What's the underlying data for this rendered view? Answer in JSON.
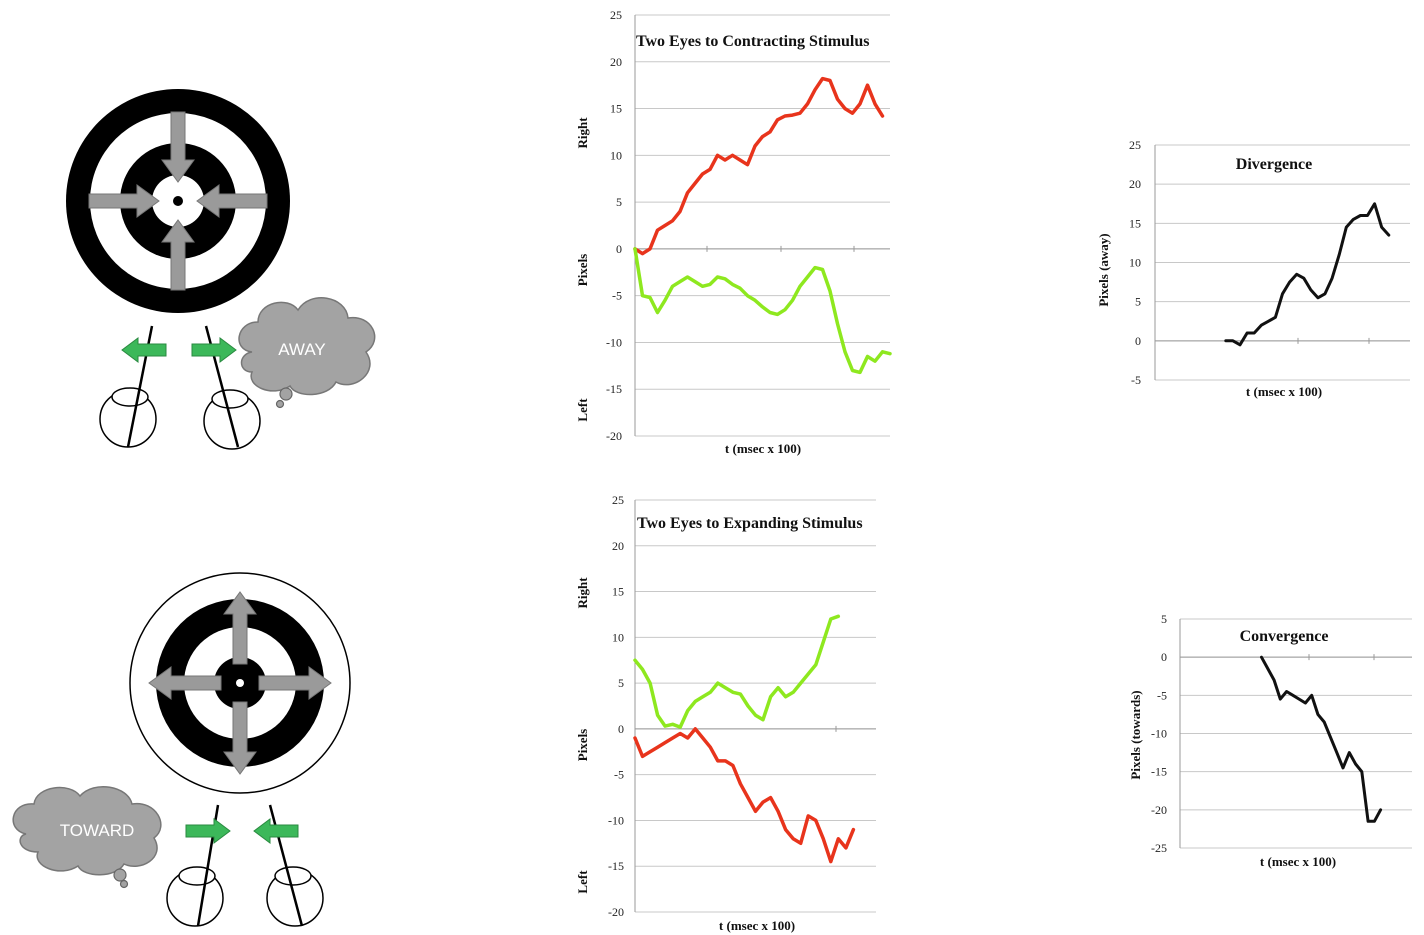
{
  "illustrations": {
    "away_label": "AWAY",
    "toward_label": "TOWARD"
  },
  "colors": {
    "right_eye": "#e8341c",
    "left_eye": "#8ee81f",
    "difference": "#111111",
    "arrow_green": "#3cb85a",
    "arrow_gray": "#9a9a9a",
    "cloud_gray": "#a3a3a3"
  },
  "chart_data": [
    {
      "id": "contracting",
      "type": "line",
      "title": "Two Eyes to Contracting Stimulus",
      "xlabel": "t (msec x 100)",
      "ylabel_top": "Right",
      "ylabel_mid": "Pixels",
      "ylabel_bottom": "Left",
      "ylim": [
        -20,
        25
      ],
      "yticks": [
        25,
        20,
        15,
        10,
        5,
        0,
        -5,
        -10,
        -15,
        -20
      ],
      "ytick_labels": [
        "25",
        "20",
        "15",
        "10",
        "5",
        "0",
        "-5",
        "-10",
        "-15",
        "-20"
      ],
      "grid": true,
      "xlim": [
        0,
        34
      ],
      "series": [
        {
          "color": "#e8341c",
          "values": [
            0,
            -0.5,
            0,
            2,
            2.5,
            3,
            4,
            6,
            7,
            8,
            8.5,
            10,
            9.5,
            10,
            9.5,
            9,
            11,
            12,
            12.5,
            13.8,
            14.2,
            14.3,
            14.5,
            15.5,
            17,
            18.2,
            18,
            16,
            15,
            14.5,
            15.5,
            17.5,
            15.5,
            14.2
          ]
        },
        {
          "color": "#8ee81f",
          "values": [
            0,
            -5,
            -5.2,
            -6.8,
            -5.5,
            -4,
            -3.5,
            -3,
            -3.5,
            -4,
            -3.8,
            -3,
            -3.2,
            -3.8,
            -4.2,
            -5,
            -5.5,
            -6.2,
            -6.8,
            -7,
            -6.5,
            -5.5,
            -4,
            -3,
            -2,
            -2.2,
            -4.5,
            -8,
            -11,
            -13,
            -13.2,
            -11.5,
            -12,
            -11,
            -11.2
          ]
        }
      ]
    },
    {
      "id": "expanding",
      "type": "line",
      "title": "Two Eyes to Expanding Stimulus",
      "xlabel": "t (msec x 100)",
      "ylabel_top": "Right",
      "ylabel_mid": "Pixels",
      "ylabel_bottom": "Left",
      "ylim": [
        -20,
        25
      ],
      "yticks": [
        25,
        20,
        15,
        10,
        5,
        0,
        -5,
        -10,
        -15,
        -20
      ],
      "ytick_labels": [
        "25",
        "20",
        "15",
        "10",
        "5",
        "0",
        "-5",
        "-10",
        "-15",
        "-20"
      ],
      "grid": true,
      "xlim": [
        0,
        32
      ],
      "series": [
        {
          "color": "#8ee81f",
          "values": [
            7.5,
            6.5,
            5,
            1.5,
            0.3,
            0.5,
            0.2,
            2,
            3,
            3.5,
            4,
            5,
            4.5,
            4,
            3.8,
            2.5,
            1.5,
            1,
            3.5,
            4.5,
            3.5,
            4,
            5,
            6,
            7,
            9.5,
            12,
            12.3
          ]
        },
        {
          "color": "#e8341c",
          "values": [
            -1,
            -3,
            -2.5,
            -2,
            -1.5,
            -1,
            -0.5,
            -1,
            0,
            -1,
            -2,
            -3.5,
            -3.5,
            -4,
            -6,
            -7.5,
            -9,
            -8,
            -7.5,
            -9,
            -11,
            -12,
            -12.5,
            -9.5,
            -10,
            -12,
            -14.5,
            -12,
            -13,
            -11
          ]
        }
      ]
    },
    {
      "id": "divergence",
      "type": "line",
      "title": "Divergence",
      "xlabel": "t (msec x 100)",
      "ylabel": "Pixels (away)",
      "ylim": [
        -5,
        25
      ],
      "yticks": [
        25,
        20,
        15,
        10,
        5,
        0,
        -5
      ],
      "ytick_labels": [
        "25",
        "20",
        "15",
        "10",
        "5",
        "0",
        "-5"
      ],
      "grid": true,
      "xlim": [
        0,
        36
      ],
      "x_start": 10,
      "series": [
        {
          "color": "#111111",
          "values": [
            0,
            0,
            -0.5,
            1,
            1,
            2,
            2.5,
            3,
            6,
            7.5,
            8.5,
            8,
            6.5,
            5.5,
            6,
            8,
            11,
            14.5,
            15.5,
            16,
            16,
            17.5,
            14.5,
            13.5
          ]
        }
      ]
    },
    {
      "id": "convergence",
      "type": "line",
      "title": "Convergence",
      "xlabel": "t (msec x 100)",
      "ylabel": "Pixels (towards)",
      "ylim": [
        -25,
        5
      ],
      "yticks": [
        5,
        0,
        -5,
        -10,
        -15,
        -20,
        -25
      ],
      "ytick_labels": [
        "5",
        "0",
        "-5",
        "-10",
        "-15",
        "-20",
        "-25"
      ],
      "grid": true,
      "xlim": [
        0,
        37
      ],
      "x_start": 13,
      "series": [
        {
          "color": "#111111",
          "values": [
            0,
            -1.5,
            -3,
            -5.5,
            -4.5,
            -5,
            -5.5,
            -6,
            -5,
            -7.5,
            -8.5,
            -10.5,
            -12.5,
            -14.5,
            -12.5,
            -14,
            -15,
            -21.5,
            -21.5,
            -20
          ]
        }
      ]
    }
  ]
}
